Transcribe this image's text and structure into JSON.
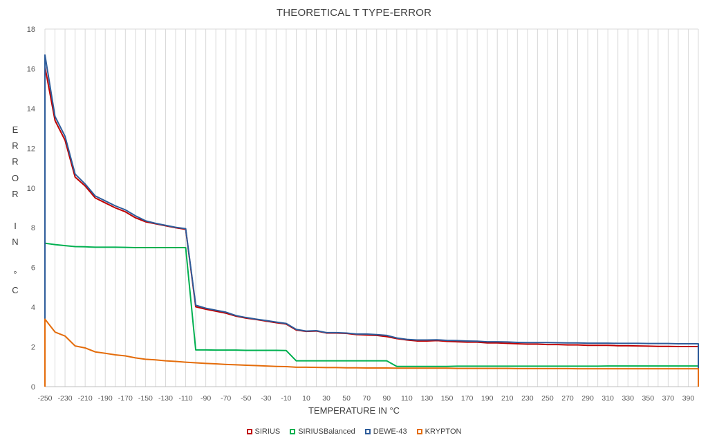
{
  "chart_data": {
    "type": "line",
    "title": "THEORETICAL T TYPE-ERROR",
    "xlabel": "TEMPERATURE IN °C",
    "ylabel_letters": [
      "E",
      "R",
      "R",
      "O",
      "R",
      "",
      "I",
      "N",
      "",
      "°",
      "C"
    ],
    "xlim": [
      -250,
      400
    ],
    "ylim": [
      0,
      18
    ],
    "y_ticks": [
      0,
      2,
      4,
      6,
      8,
      10,
      12,
      14,
      16,
      18
    ],
    "x_tick_labels": [
      "-250",
      "-230",
      "-210",
      "-190",
      "-170",
      "-150",
      "-130",
      "-110",
      "-90",
      "-70",
      "-50",
      "-30",
      "-10",
      "10",
      "30",
      "50",
      "70",
      "90",
      "110",
      "130",
      "150",
      "170",
      "190",
      "210",
      "230",
      "250",
      "270",
      "290",
      "310",
      "330",
      "350",
      "370",
      "390"
    ],
    "x_tick_values": [
      -250,
      -230,
      -210,
      -190,
      -170,
      -150,
      -130,
      -110,
      -90,
      -70,
      -50,
      -30,
      -10,
      10,
      30,
      50,
      70,
      90,
      110,
      130,
      150,
      170,
      190,
      210,
      230,
      250,
      270,
      290,
      310,
      330,
      350,
      370,
      390
    ],
    "grid_vertical_step": 10,
    "legend_position": "bottom",
    "x": [
      -250,
      -240,
      -230,
      -220,
      -210,
      -200,
      -190,
      -180,
      -170,
      -160,
      -150,
      -140,
      -130,
      -120,
      -110,
      -100,
      -90,
      -80,
      -70,
      -60,
      -50,
      -40,
      -30,
      -20,
      -10,
      0,
      10,
      20,
      30,
      40,
      50,
      60,
      70,
      80,
      90,
      100,
      110,
      120,
      130,
      140,
      150,
      160,
      170,
      180,
      190,
      200,
      210,
      220,
      230,
      240,
      250,
      260,
      270,
      280,
      290,
      300,
      310,
      320,
      330,
      340,
      350,
      360,
      370,
      380,
      390,
      400
    ],
    "series": [
      {
        "name": "SIRIUS",
        "color": "#C00000",
        "values": [
          16.1,
          13.4,
          12.4,
          10.55,
          10.1,
          9.5,
          9.25,
          9.0,
          8.8,
          8.5,
          8.3,
          8.2,
          8.1,
          8.0,
          7.92,
          4.02,
          3.9,
          3.8,
          3.7,
          3.55,
          3.45,
          3.38,
          3.3,
          3.22,
          3.15,
          2.85,
          2.78,
          2.8,
          2.7,
          2.7,
          2.68,
          2.62,
          2.6,
          2.58,
          2.52,
          2.42,
          2.35,
          2.3,
          2.3,
          2.32,
          2.28,
          2.26,
          2.24,
          2.24,
          2.2,
          2.2,
          2.18,
          2.16,
          2.14,
          2.14,
          2.12,
          2.12,
          2.1,
          2.1,
          2.08,
          2.08,
          2.08,
          2.06,
          2.06,
          2.05,
          2.04,
          2.03,
          2.03,
          2.02,
          2.02,
          2.02
        ]
      },
      {
        "name": "SIRIUSBalanced",
        "color": "#00B050",
        "values": [
          7.22,
          7.15,
          7.1,
          7.05,
          7.04,
          7.02,
          7.02,
          7.02,
          7.01,
          7.0,
          7.0,
          7.0,
          7.0,
          7.0,
          7.0,
          1.85,
          1.85,
          1.84,
          1.84,
          1.84,
          1.83,
          1.83,
          1.83,
          1.83,
          1.82,
          1.3,
          1.3,
          1.3,
          1.3,
          1.3,
          1.3,
          1.3,
          1.3,
          1.3,
          1.3,
          1.02,
          1.02,
          1.02,
          1.02,
          1.02,
          1.02,
          1.03,
          1.03,
          1.03,
          1.03,
          1.03,
          1.03,
          1.03,
          1.03,
          1.03,
          1.03,
          1.03,
          1.03,
          1.03,
          1.03,
          1.03,
          1.04,
          1.04,
          1.04,
          1.04,
          1.04,
          1.04,
          1.04,
          1.04,
          1.04,
          1.04
        ]
      },
      {
        "name": "DEWE-43",
        "color": "#2E5C9A",
        "values": [
          16.7,
          13.6,
          12.6,
          10.7,
          10.2,
          9.6,
          9.35,
          9.1,
          8.9,
          8.6,
          8.35,
          8.22,
          8.12,
          8.02,
          7.95,
          4.1,
          3.95,
          3.85,
          3.75,
          3.58,
          3.48,
          3.4,
          3.33,
          3.25,
          3.18,
          2.88,
          2.8,
          2.82,
          2.72,
          2.72,
          2.7,
          2.65,
          2.65,
          2.62,
          2.58,
          2.45,
          2.38,
          2.35,
          2.35,
          2.36,
          2.33,
          2.32,
          2.3,
          2.29,
          2.26,
          2.26,
          2.25,
          2.23,
          2.22,
          2.22,
          2.22,
          2.21,
          2.2,
          2.2,
          2.19,
          2.19,
          2.19,
          2.18,
          2.18,
          2.18,
          2.17,
          2.17,
          2.17,
          2.16,
          2.16,
          2.16
        ]
      },
      {
        "name": "KRYPTON",
        "color": "#E46C0A",
        "values": [
          3.4,
          2.75,
          2.55,
          2.05,
          1.95,
          1.75,
          1.68,
          1.6,
          1.55,
          1.45,
          1.38,
          1.35,
          1.3,
          1.27,
          1.23,
          1.2,
          1.17,
          1.15,
          1.12,
          1.1,
          1.08,
          1.06,
          1.04,
          1.02,
          1.01,
          0.98,
          0.98,
          0.97,
          0.96,
          0.96,
          0.95,
          0.95,
          0.94,
          0.94,
          0.94,
          0.93,
          0.93,
          0.93,
          0.93,
          0.93,
          0.93,
          0.92,
          0.92,
          0.92,
          0.92,
          0.92,
          0.92,
          0.91,
          0.91,
          0.91,
          0.91,
          0.91,
          0.91,
          0.9,
          0.9,
          0.9,
          0.9,
          0.9,
          0.9,
          0.9,
          0.9,
          0.9,
          0.9,
          0.9,
          0.9,
          0.9
        ]
      }
    ]
  }
}
